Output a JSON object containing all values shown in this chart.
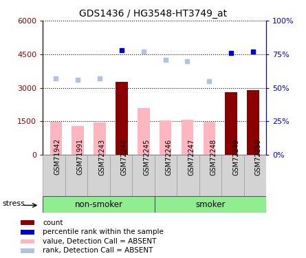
{
  "title": "GDS1436 / HG3548-HT3749_at",
  "samples": [
    "GSM71942",
    "GSM71991",
    "GSM72243",
    "GSM72244",
    "GSM72245",
    "GSM72246",
    "GSM72247",
    "GSM72248",
    "GSM72249",
    "GSM72250"
  ],
  "count_values": [
    null,
    null,
    null,
    3250,
    null,
    null,
    null,
    null,
    2800,
    2900
  ],
  "count_absent": [
    1480,
    1300,
    1460,
    null,
    2080,
    1540,
    1560,
    1490,
    null,
    null
  ],
  "rank_values_pct": [
    null,
    null,
    null,
    78,
    null,
    null,
    null,
    null,
    76,
    77
  ],
  "rank_absent_pct": [
    57,
    56,
    57,
    null,
    77,
    71,
    70,
    55,
    null,
    null
  ],
  "ylim_left": [
    0,
    6000
  ],
  "ylim_right": [
    0,
    100
  ],
  "yticks_left": [
    0,
    1500,
    3000,
    4500,
    6000
  ],
  "yticks_right": [
    0,
    25,
    50,
    75,
    100
  ],
  "ytick_labels_left": [
    "0",
    "1500",
    "3000",
    "4500",
    "6000"
  ],
  "ytick_labels_right": [
    "0%",
    "25%",
    "50%",
    "75%",
    "100%"
  ],
  "color_count": "#8B0000",
  "color_rank": "#0000CD",
  "color_count_absent": "#FFB6C1",
  "color_rank_absent": "#B0C4DE",
  "color_non_smoker": "#90EE90",
  "color_smoker": "#90EE90",
  "color_xtick_bg": "#D3D3D3",
  "bar_width": 0.55,
  "stress_label": "stress",
  "non_smoker_label": "non-smoker",
  "smoker_label": "smoker",
  "legend_count": "count",
  "legend_rank": "percentile rank within the sample",
  "legend_count_absent": "value, Detection Call = ABSENT",
  "legend_rank_absent": "rank, Detection Call = ABSENT"
}
